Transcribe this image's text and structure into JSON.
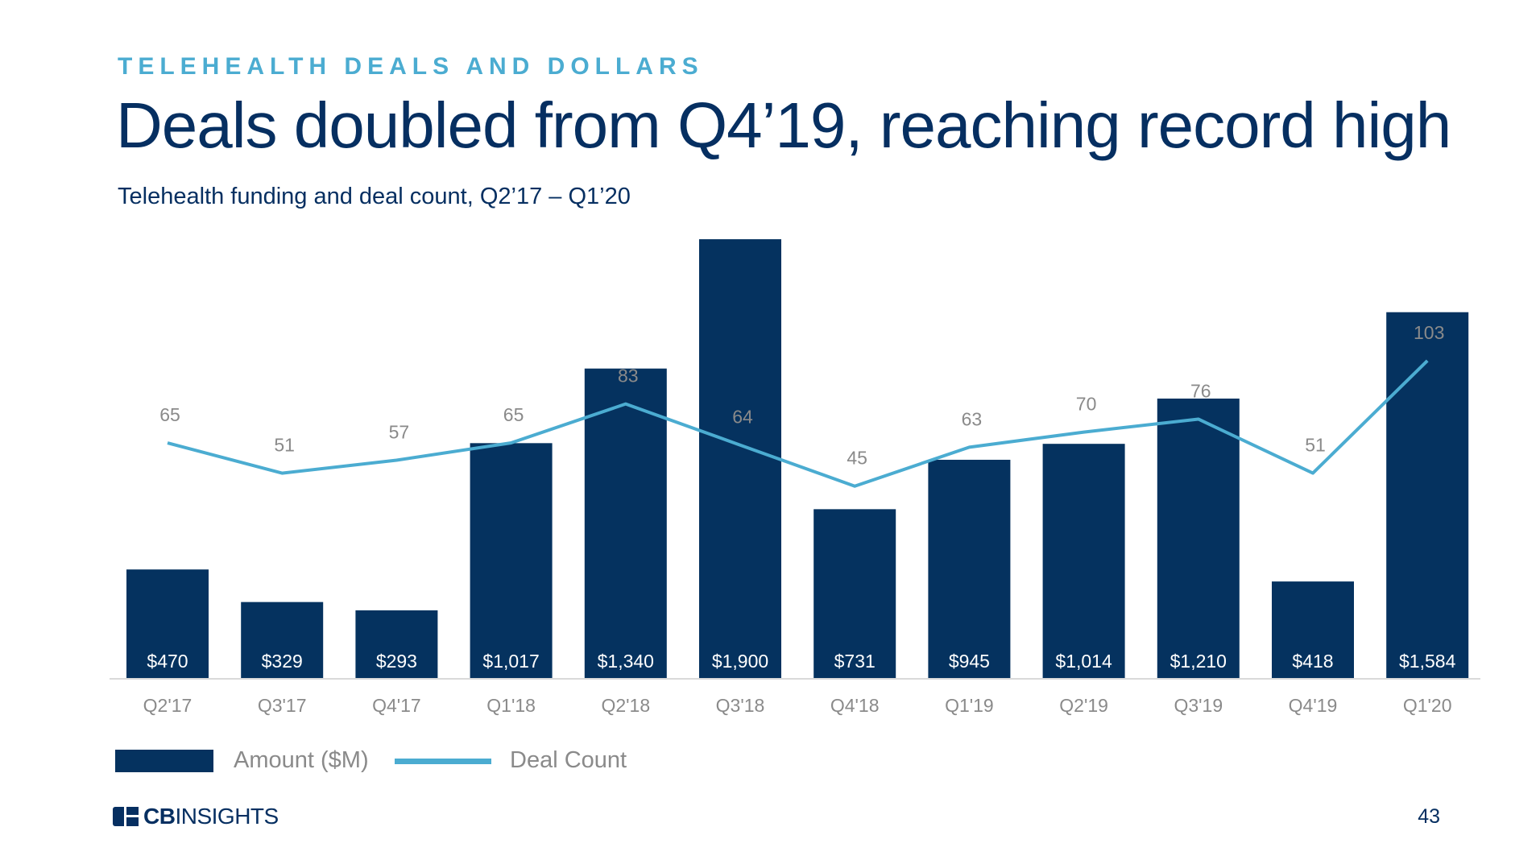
{
  "header": {
    "eyebrow": "TELEHEALTH DEALS AND DOLLARS",
    "title": "Deals doubled from Q4’19, reaching record high",
    "subtitle": "Telehealth funding and deal count, Q2’17 – Q1’20"
  },
  "chart_data": {
    "type": "bar",
    "title": "",
    "xlabel": "",
    "ylabel": "",
    "categories": [
      "Q2'17",
      "Q3'17",
      "Q4'17",
      "Q1'18",
      "Q2'18",
      "Q3'18",
      "Q4'18",
      "Q1'19",
      "Q2'19",
      "Q3'19",
      "Q4'19",
      "Q1'20"
    ],
    "series": [
      {
        "name": "Amount ($M)",
        "type": "bar",
        "values": [
          470,
          329,
          293,
          1017,
          1340,
          1900,
          731,
          945,
          1014,
          1210,
          418,
          1584
        ],
        "labels": [
          "$470",
          "$329",
          "$293",
          "$1,017",
          "$1,340",
          "$1,900",
          "$731",
          "$945",
          "$1,014",
          "$1,210",
          "$418",
          "$1,584"
        ],
        "color": "#05325f"
      },
      {
        "name": "Deal Count",
        "type": "line",
        "values": [
          65,
          51,
          57,
          65,
          83,
          64,
          45,
          63,
          70,
          76,
          51,
          103
        ],
        "color": "#4bacd1"
      }
    ],
    "grid": false,
    "legend_position": "bottom-left",
    "colors": {
      "bar": "#05325f",
      "line": "#4bacd1",
      "bar_label": "#ffffff",
      "line_label": "#8a8a8a",
      "tick": "#8a8a8a"
    }
  },
  "legend": {
    "amount_label": "Amount ($M)",
    "deal_count_label": "Deal Count"
  },
  "footer": {
    "logo_bold": "CB",
    "logo_rest": "INSIGHTS",
    "page_number": "43"
  }
}
